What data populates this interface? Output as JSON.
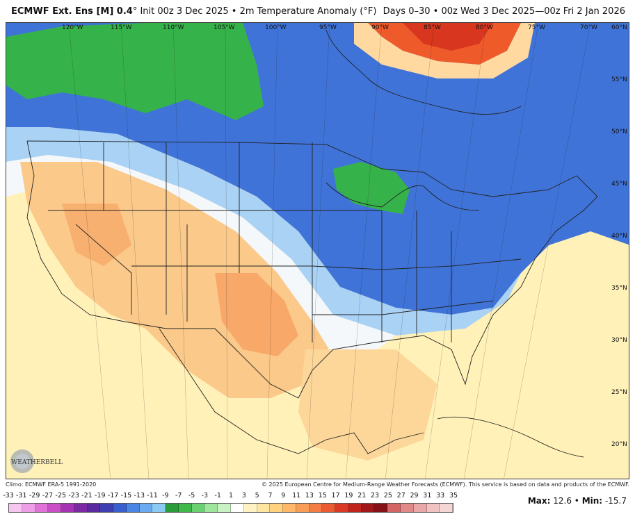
{
  "header": {
    "title": "ECMWF Ext. Ens [M] 0.4",
    "init": "° Init 00z 3 Dec 2025 • 2m Temperature Anomaly (°F)",
    "valid": "Days 0–30 • 00z Wed 3 Dec 2025—00z Fri 2 Jan 2026"
  },
  "footer": {
    "climo": "Climo: ECMWF ERA-5 1991-2020",
    "copyright": "© 2025 European Centre for Medium-Range Weather Forecasts (ECMWF). This service is based on data and products of the ECMWF."
  },
  "stats": {
    "max_label": "Max:",
    "max_value": "12.6",
    "min_label": "Min:",
    "min_value": "-15.7",
    "sep": "•"
  },
  "logo": {
    "text": "WEATHERBELL"
  },
  "longitudes": [
    "120°W",
    "115°W",
    "110°W",
    "105°W",
    "100°W",
    "95°W",
    "90°W",
    "85°W",
    "80°W",
    "75°W",
    "70°W"
  ],
  "latitudes": [
    "60°N",
    "55°N",
    "50°N",
    "45°N",
    "40°N",
    "35°N",
    "30°N",
    "25°N",
    "20°N"
  ],
  "scale": {
    "labels": [
      "-33",
      "-31",
      "-29",
      "-27",
      "-25",
      "-23",
      "-21",
      "-19",
      "-17",
      "-15",
      "-13",
      "-11",
      "-9",
      "-7",
      "-5",
      "-3",
      "-1",
      "1",
      "3",
      "5",
      "7",
      "9",
      "11",
      "13",
      "15",
      "17",
      "19",
      "21",
      "23",
      "25",
      "27",
      "29",
      "31",
      "33",
      "35"
    ],
    "colors": [
      "#f7c6f0",
      "#ee9ee6",
      "#e073d8",
      "#c94fc6",
      "#a534b4",
      "#7b2aa3",
      "#5a2b9e",
      "#3f3fb0",
      "#3a5fcf",
      "#4b86e3",
      "#6aaaf0",
      "#8ccaf6",
      "#2a9d3a",
      "#41b84a",
      "#69d170",
      "#9de69b",
      "#c8f2c4",
      "#ffffff",
      "#fff3c4",
      "#ffe6a0",
      "#ffd27f",
      "#fdb86a",
      "#f99c58",
      "#f47d45",
      "#ea5a33",
      "#d93a26",
      "#c0241d",
      "#a0181a",
      "#841216",
      "#d46565",
      "#e18888",
      "#eaa7a7",
      "#f0c2c2",
      "#f5d6d6"
    ]
  }
}
